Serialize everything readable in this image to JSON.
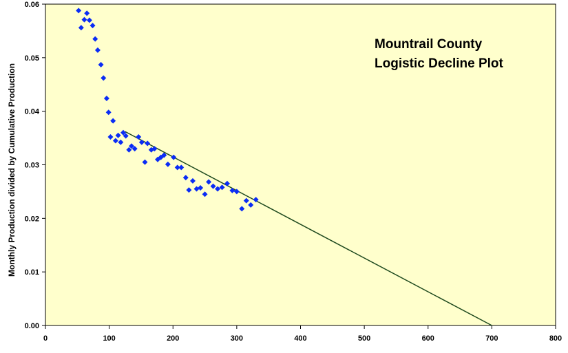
{
  "chart_data": {
    "type": "scatter",
    "title_lines": [
      "Mountrail  County",
      "Logistic Decline Plot"
    ],
    "ylabel": "Monthly Production divided by Cumulative Production",
    "xlim": [
      0,
      800
    ],
    "ylim": [
      0,
      0.06
    ],
    "x_ticks": [
      "0",
      "100",
      "200",
      "300",
      "400",
      "500",
      "600",
      "700",
      "800"
    ],
    "y_ticks": [
      "0.00",
      "0.01",
      "0.02",
      "0.03",
      "0.04",
      "0.05",
      "0.06"
    ],
    "grid": false,
    "legend": "none",
    "colors": {
      "plot_background": "#ffffcc",
      "marker": "#0a2cf5",
      "trend_line": "#1f4a1f"
    },
    "series": [
      {
        "marker": "diamond",
        "points": [
          [
            52,
            0.0588
          ],
          [
            56,
            0.0556
          ],
          [
            61,
            0.0571
          ],
          [
            65,
            0.0583
          ],
          [
            69,
            0.057
          ],
          [
            74,
            0.056
          ],
          [
            78,
            0.0535
          ],
          [
            82,
            0.0514
          ],
          [
            87,
            0.0487
          ],
          [
            91,
            0.0462
          ],
          [
            96,
            0.0424
          ],
          [
            99,
            0.0398
          ],
          [
            102,
            0.0352
          ],
          [
            106,
            0.0382
          ],
          [
            110,
            0.0345
          ],
          [
            114,
            0.0355
          ],
          [
            118,
            0.0342
          ],
          [
            122,
            0.036
          ],
          [
            126,
            0.0354
          ],
          [
            131,
            0.0328
          ],
          [
            135,
            0.0335
          ],
          [
            140,
            0.033
          ],
          [
            146,
            0.0352
          ],
          [
            151,
            0.0342
          ],
          [
            156,
            0.0305
          ],
          [
            160,
            0.034
          ],
          [
            166,
            0.0328
          ],
          [
            171,
            0.033
          ],
          [
            176,
            0.031
          ],
          [
            181,
            0.0314
          ],
          [
            186,
            0.0318
          ],
          [
            192,
            0.0301
          ],
          [
            201,
            0.0314
          ],
          [
            207,
            0.0295
          ],
          [
            213,
            0.0295
          ],
          [
            220,
            0.0276
          ],
          [
            225,
            0.0253
          ],
          [
            231,
            0.027
          ],
          [
            237,
            0.0255
          ],
          [
            243,
            0.0257
          ],
          [
            250,
            0.0245
          ],
          [
            256,
            0.0268
          ],
          [
            263,
            0.026
          ],
          [
            270,
            0.0255
          ],
          [
            277,
            0.0258
          ],
          [
            285,
            0.0265
          ],
          [
            293,
            0.0252
          ],
          [
            300,
            0.025
          ],
          [
            308,
            0.0218
          ],
          [
            315,
            0.0233
          ],
          [
            322,
            0.0225
          ],
          [
            330,
            0.0235
          ]
        ]
      }
    ],
    "trend_line": {
      "x": [
        125,
        700
      ],
      "y": [
        0.0362,
        0.0
      ]
    }
  }
}
